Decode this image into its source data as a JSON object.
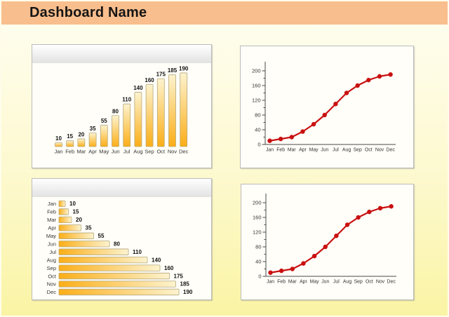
{
  "page": {
    "title": "Dashboard Name"
  },
  "theme": {
    "header_bg": "#f9be8d",
    "page_bg_top": "#fffef2",
    "page_bg_bottom": "#faf4a4",
    "panel_bg": "#fffef8",
    "panel_border": "#bcbcbc",
    "panel_header_top": "#ffffff",
    "panel_header_bottom": "#e2e2e2",
    "bar_color_strong": "#fbae17",
    "bar_color_pale": "#fdf3cf",
    "bar_border": "#b5a87e",
    "line_color": "#c91111",
    "axis_color": "#4a4a4a",
    "label_color": "#333333",
    "value_label_color": "#111111"
  },
  "chart_data": [
    {
      "id": "vertical-bar-chart",
      "type": "bar",
      "orientation": "vertical",
      "title": "",
      "xlabel": "",
      "ylabel": "",
      "categories": [
        "Jan",
        "Feb",
        "Mar",
        "Apr",
        "May",
        "Jun",
        "Jul",
        "Aug",
        "Sep",
        "Oct",
        "Nov",
        "Dec"
      ],
      "values": [
        10,
        15,
        20,
        35,
        55,
        80,
        110,
        140,
        160,
        175,
        185,
        190
      ],
      "value_labels_shown": true,
      "axes_shown": false,
      "grid": false,
      "legend": false
    },
    {
      "id": "line-chart-top",
      "type": "line",
      "title": "",
      "xlabel": "",
      "ylabel": "",
      "x": [
        "Jan",
        "Feb",
        "Mar",
        "Apr",
        "May",
        "Jun",
        "Jul",
        "Aug",
        "Sep",
        "Oct",
        "Nov",
        "Dec"
      ],
      "values": [
        10,
        15,
        20,
        35,
        55,
        80,
        110,
        140,
        160,
        175,
        185,
        190
      ],
      "ylim": [
        0,
        200
      ],
      "yticks": [
        0,
        40,
        80,
        120,
        160,
        200
      ],
      "minor_tick_step": 20,
      "marker": "circle",
      "grid": false,
      "legend": false
    },
    {
      "id": "horizontal-bar-chart",
      "type": "bar",
      "orientation": "horizontal",
      "title": "",
      "xlabel": "",
      "ylabel": "",
      "categories": [
        "Jan",
        "Feb",
        "Mar",
        "Apr",
        "May",
        "Jun",
        "Jul",
        "Aug",
        "Sep",
        "Oct",
        "Nov",
        "Dec"
      ],
      "values": [
        10,
        15,
        20,
        35,
        55,
        80,
        110,
        140,
        160,
        175,
        185,
        190
      ],
      "value_labels_shown": true,
      "axes_shown": false,
      "grid": false,
      "legend": false
    },
    {
      "id": "line-chart-bottom",
      "type": "line",
      "title": "",
      "xlabel": "",
      "ylabel": "",
      "x": [
        "Jan",
        "Feb",
        "Mar",
        "Apr",
        "May",
        "Jun",
        "Jul",
        "Aug",
        "Sep",
        "Oct",
        "Nov",
        "Dec"
      ],
      "values": [
        10,
        15,
        20,
        35,
        55,
        80,
        110,
        140,
        160,
        175,
        185,
        190
      ],
      "ylim": [
        0,
        200
      ],
      "yticks": [
        0,
        40,
        80,
        120,
        160,
        200
      ],
      "minor_tick_step": 20,
      "marker": "circle",
      "grid": false,
      "legend": false
    }
  ]
}
